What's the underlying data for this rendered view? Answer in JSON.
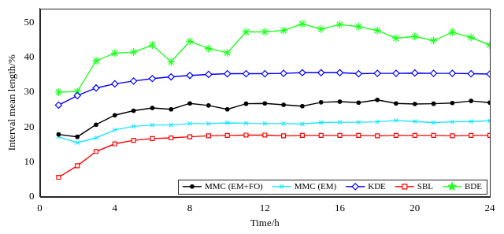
{
  "chart_data": {
    "type": "line",
    "x_label": "Time/h",
    "y_label": "Interval mean length/%",
    "x": [
      1,
      2,
      3,
      4,
      5,
      6,
      7,
      8,
      9,
      10,
      11,
      12,
      13,
      14,
      15,
      16,
      17,
      18,
      19,
      20,
      21,
      22,
      23,
      24
    ],
    "xlim": [
      0,
      24
    ],
    "xticks": [
      0,
      4,
      8,
      12,
      16,
      20,
      24
    ],
    "ylim": [
      0,
      54
    ],
    "yticks": [
      0,
      10,
      20,
      30,
      40,
      50
    ],
    "grid": false,
    "legend": "bottom-right",
    "series": [
      {
        "name": "MMC (EM+FO)",
        "color": "#000000",
        "marker": "circle",
        "line_style": "solid",
        "values": [
          17.9,
          17.2,
          20.7,
          23.4,
          24.7,
          25.5,
          25.1,
          26.8,
          26.2,
          25.1,
          26.7,
          26.8,
          26.4,
          26.0,
          27.1,
          27.3,
          27.0,
          27.8,
          26.8,
          26.6,
          26.7,
          26.9,
          27.5,
          27.0
        ]
      },
      {
        "name": "MMC (EM)",
        "color": "#1ee6ff",
        "marker": "x",
        "line_style": "solid",
        "values": [
          17.2,
          15.5,
          16.9,
          19.2,
          20.2,
          20.6,
          20.6,
          21.0,
          21.0,
          21.2,
          21.1,
          21.0,
          21.0,
          20.9,
          21.3,
          21.4,
          21.4,
          21.5,
          21.9,
          21.6,
          21.3,
          21.5,
          21.6,
          21.8
        ]
      },
      {
        "name": "KDE",
        "color": "#0000ff",
        "marker": "diamond",
        "line_style": "solid",
        "values": [
          26.3,
          29.0,
          31.2,
          32.4,
          33.2,
          33.9,
          34.4,
          34.8,
          35.1,
          35.3,
          35.3,
          35.3,
          35.4,
          35.6,
          35.6,
          35.6,
          35.3,
          35.4,
          35.4,
          35.5,
          35.4,
          35.4,
          35.3,
          35.2
        ]
      },
      {
        "name": "SBL",
        "color": "#ff0000",
        "marker": "square",
        "line_style": "solid",
        "values": [
          5.6,
          8.9,
          13.0,
          15.2,
          16.2,
          16.7,
          16.9,
          17.2,
          17.5,
          17.6,
          17.7,
          17.7,
          17.5,
          17.6,
          17.6,
          17.6,
          17.6,
          17.5,
          17.6,
          17.6,
          17.6,
          17.5,
          17.6,
          17.6
        ]
      },
      {
        "name": "BDE",
        "color": "#22ff22",
        "marker": "star",
        "line_style": "solid",
        "values": [
          30.0,
          30.2,
          39.0,
          41.2,
          41.5,
          43.5,
          38.7,
          44.6,
          42.5,
          41.3,
          47.3,
          47.3,
          47.7,
          49.6,
          48.1,
          49.4,
          48.8,
          47.7,
          45.5,
          46.0,
          44.8,
          47.2,
          45.7,
          43.5
        ]
      }
    ]
  }
}
